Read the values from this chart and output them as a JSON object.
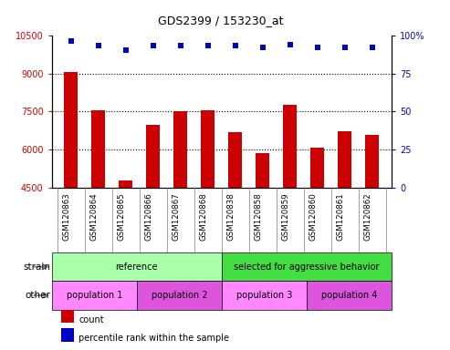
{
  "title": "GDS2399 / 153230_at",
  "samples": [
    "GSM120863",
    "GSM120864",
    "GSM120865",
    "GSM120866",
    "GSM120867",
    "GSM120868",
    "GSM120838",
    "GSM120858",
    "GSM120859",
    "GSM120860",
    "GSM120861",
    "GSM120862"
  ],
  "counts": [
    9050,
    7530,
    4780,
    6980,
    7500,
    7540,
    6700,
    5870,
    7780,
    6080,
    6720,
    6580
  ],
  "percentile_ranks": [
    96,
    93,
    90,
    93,
    93,
    93,
    93,
    92,
    94,
    92,
    92,
    92
  ],
  "ylim_left": [
    4500,
    10500
  ],
  "ylim_right": [
    0,
    100
  ],
  "yticks_left": [
    4500,
    6000,
    7500,
    9000,
    10500
  ],
  "yticks_right": [
    0,
    25,
    50,
    75,
    100
  ],
  "ytick_right_labels": [
    "0",
    "25",
    "50",
    "75",
    "100%"
  ],
  "bar_color": "#cc0000",
  "dot_color": "#0000cc",
  "grid_lines": [
    6000,
    7500,
    9000
  ],
  "strain_groups": [
    {
      "label": "reference",
      "start": 0,
      "end": 6,
      "color": "#aaffaa"
    },
    {
      "label": "selected for aggressive behavior",
      "start": 6,
      "end": 12,
      "color": "#44dd44"
    }
  ],
  "other_groups": [
    {
      "label": "population 1",
      "start": 0,
      "end": 3,
      "color": "#ff88ff"
    },
    {
      "label": "population 2",
      "start": 3,
      "end": 6,
      "color": "#dd55dd"
    },
    {
      "label": "population 3",
      "start": 6,
      "end": 9,
      "color": "#ff88ff"
    },
    {
      "label": "population 4",
      "start": 9,
      "end": 12,
      "color": "#dd55dd"
    }
  ],
  "legend_items": [
    {
      "label": "count",
      "color": "#cc0000"
    },
    {
      "label": "percentile rank within the sample",
      "color": "#0000cc"
    }
  ],
  "strain_label": "strain",
  "other_label": "other",
  "background_color": "#ffffff",
  "tick_area_color": "#c8c8c8",
  "bar_width": 0.5
}
